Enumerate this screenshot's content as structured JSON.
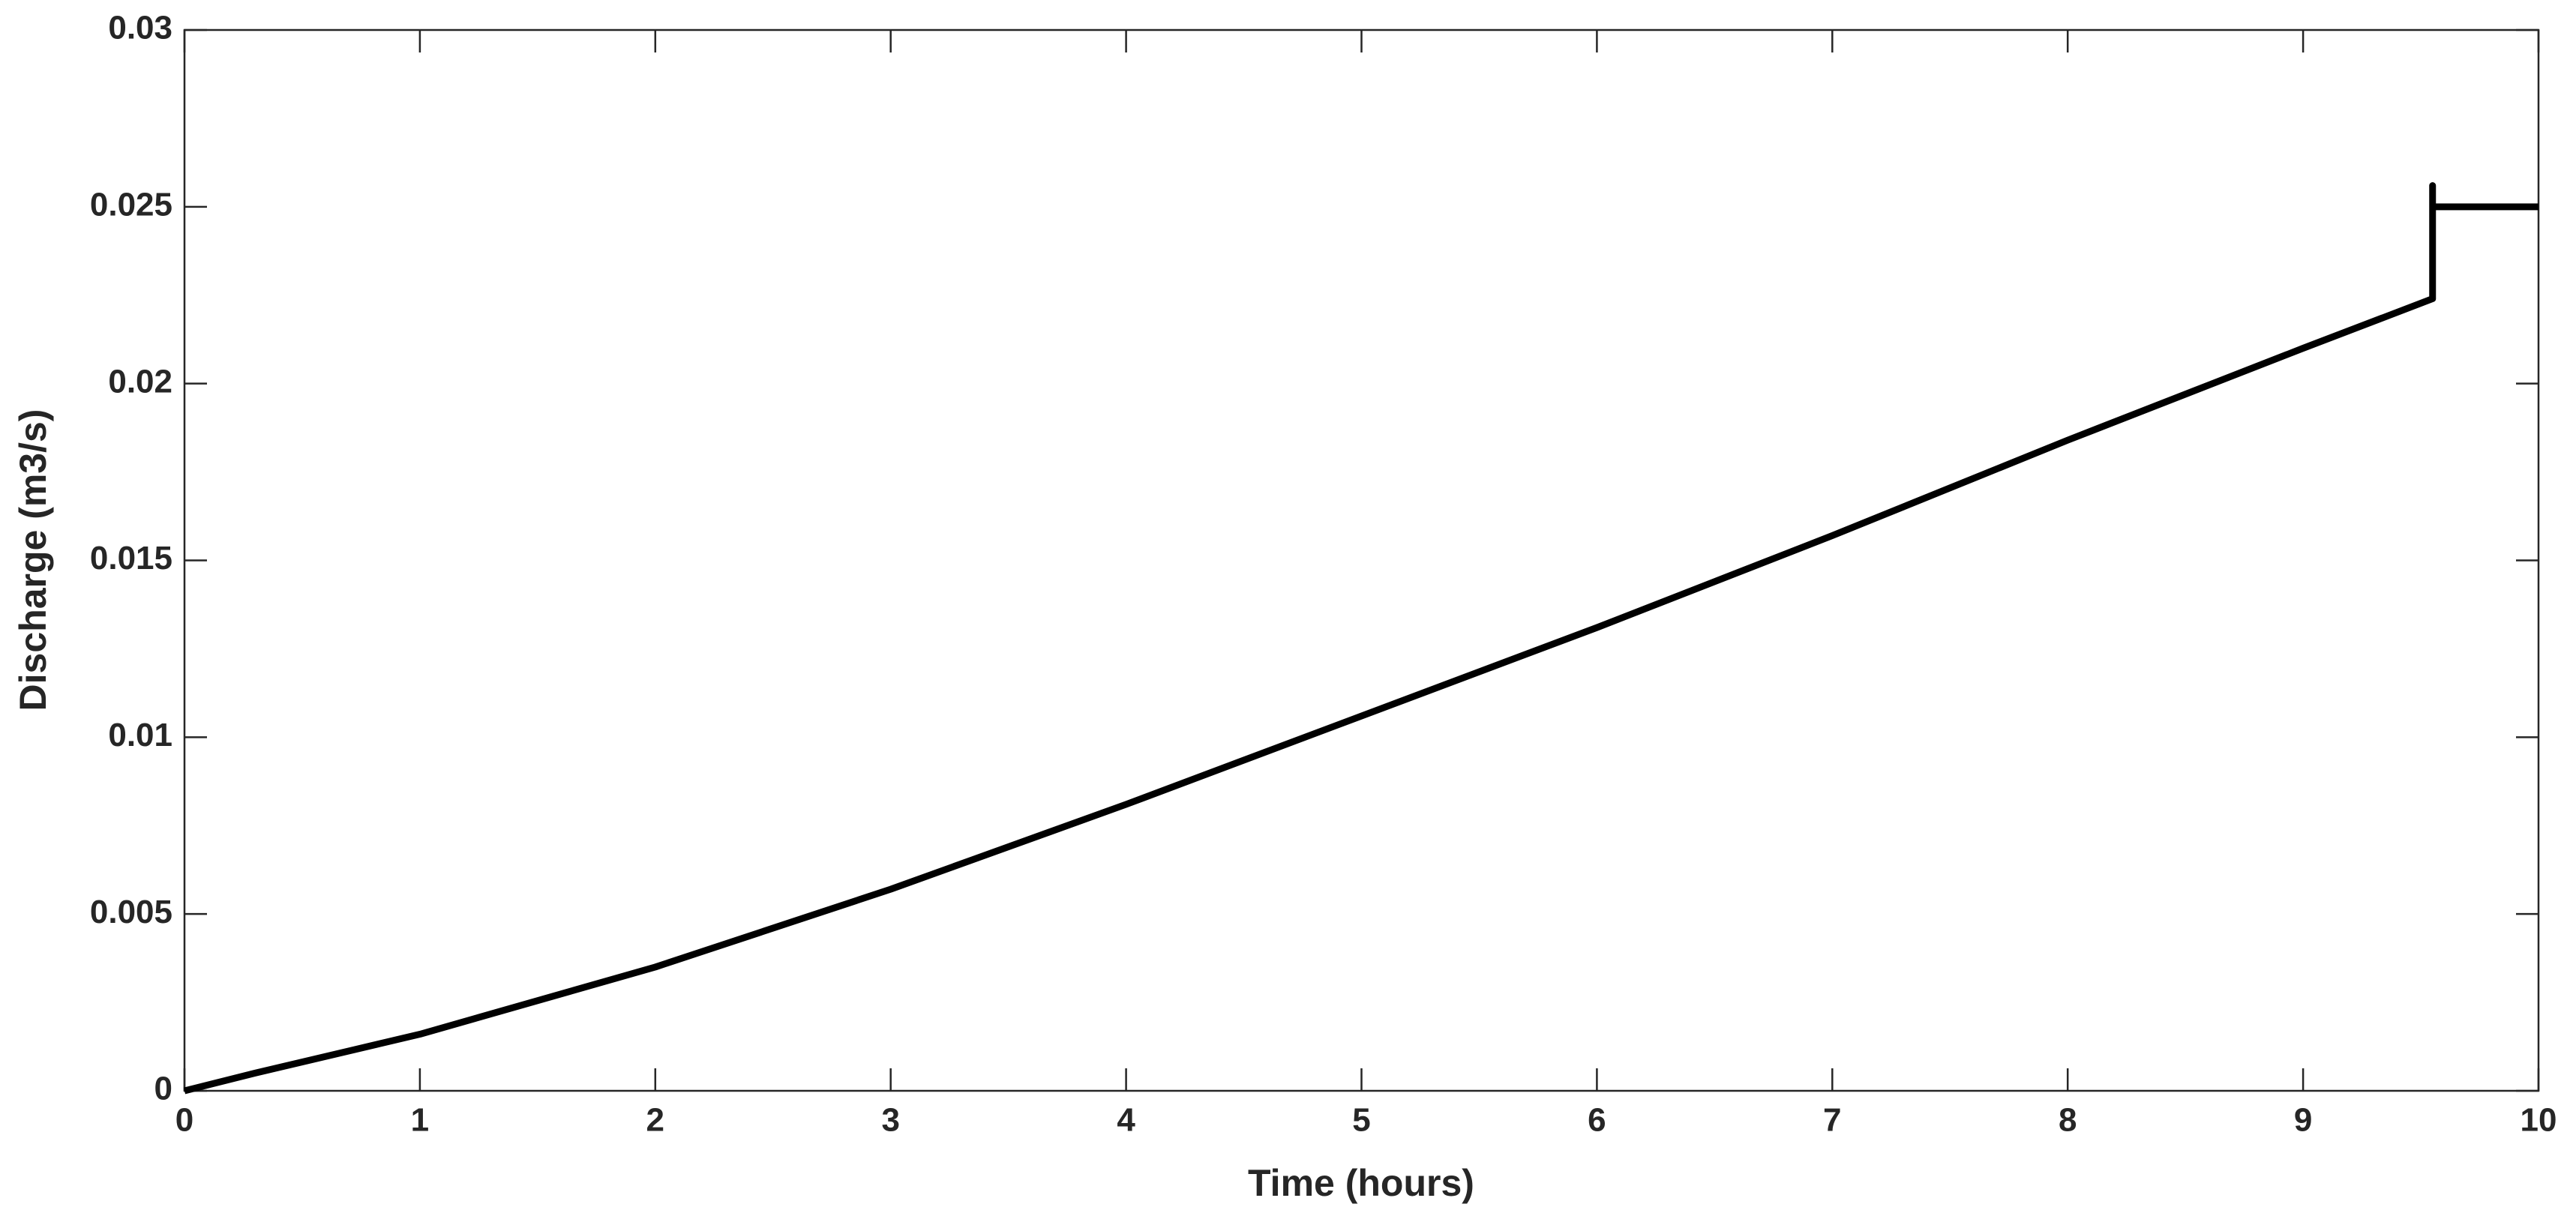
{
  "chart_data": {
    "type": "line",
    "xlabel": "Time (hours)",
    "ylabel": "Discharge (m3/s)",
    "x": [
      0,
      0.3,
      1,
      2,
      3,
      4,
      5,
      6,
      7,
      8,
      9,
      9.55,
      9.55,
      9.55,
      10
    ],
    "series": [
      {
        "color": "#000000",
        "values": [
          0,
          0.0005,
          0.0016,
          0.0035,
          0.0057,
          0.0081,
          0.0106,
          0.0131,
          0.0157,
          0.0184,
          0.021,
          0.0224,
          0.0256,
          0.025,
          0.025
        ]
      }
    ],
    "xlim": [
      0,
      10
    ],
    "xticks": [
      0,
      1,
      2,
      3,
      4,
      5,
      6,
      7,
      8,
      9,
      10
    ],
    "ylim": [
      0,
      0.03
    ],
    "yticks": [
      0,
      0.005,
      0.01,
      0.015,
      0.02,
      0.025,
      0.03
    ],
    "grid": false
  }
}
